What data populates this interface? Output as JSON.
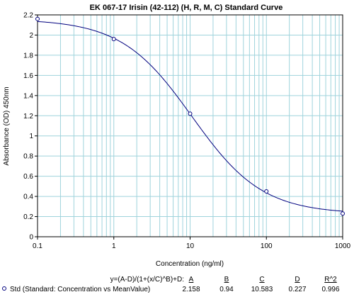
{
  "chart_data": {
    "type": "scatter",
    "title": "EK 067-17 Irisin (42-112) (H, R, M, C) Standard Curve",
    "xlabel": "Concentration (ng/ml)",
    "ylabel": "Absorbance (OD) 450nm",
    "x_scale": "log",
    "xlim": [
      0.1,
      1000
    ],
    "ylim": [
      0,
      2.2
    ],
    "x_ticks": [
      "0.1",
      "1",
      "10",
      "100",
      "1000"
    ],
    "y_ticks": [
      "0",
      "0.2",
      "0.4",
      "0.6",
      "0.8",
      "1",
      "1.2",
      "1.4",
      "1.6",
      "1.8",
      "2",
      "2.2"
    ],
    "grid": true,
    "colors": {
      "curve": "#00007f",
      "points": "#00007f",
      "grid": "#9fd3dc"
    },
    "series": [
      {
        "name": "Std (Standard: Concentration vs MeanValue)",
        "points": [
          {
            "x": 0.1,
            "y": 2.16
          },
          {
            "x": 1,
            "y": 1.96
          },
          {
            "x": 10,
            "y": 1.22
          },
          {
            "x": 100,
            "y": 0.45
          },
          {
            "x": 1000,
            "y": 0.23
          }
        ]
      }
    ],
    "fit": {
      "equation": "y=(A-D)/(1+(x/C)^B)+D:",
      "headers": [
        "A",
        "B",
        "C",
        "D",
        "R^2"
      ],
      "values": [
        "2.158",
        "0.94",
        "10.583",
        "0.227",
        "0.996"
      ],
      "params": {
        "A": 2.158,
        "B": 0.94,
        "C": 10.583,
        "D": 0.227
      }
    }
  }
}
